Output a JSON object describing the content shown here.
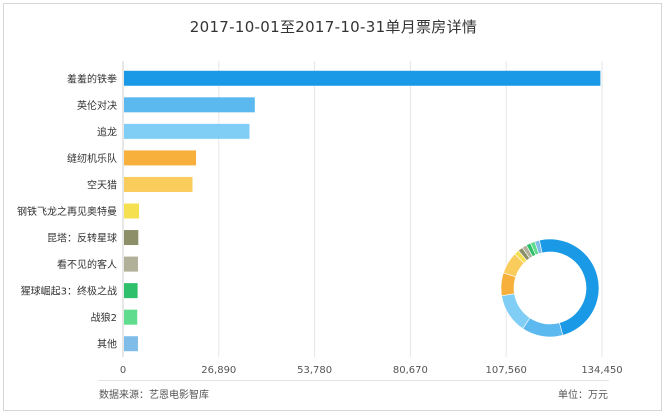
{
  "chart_data": {
    "type": "bar",
    "orientation": "horizontal",
    "title": "2017-10-01至2017-10-31单月票房详情",
    "categories": [
      "羞羞的铁拳",
      "英伦对决",
      "追龙",
      "缝纫机乐队",
      "空天猎",
      "钢铁飞龙之再见奥特曼",
      "昆塔：反转星球",
      "看不见的客人",
      "猩球崛起3：终极之战",
      "战狼2",
      "其他"
    ],
    "values": [
      134000,
      37000,
      35500,
      20500,
      19500,
      4500,
      4300,
      4200,
      4100,
      4000,
      4200
    ],
    "colors": [
      "#1a9ae6",
      "#5bb9f0",
      "#80cdf5",
      "#f7b03c",
      "#f9cc5c",
      "#f5e14f",
      "#8d8f68",
      "#b1b098",
      "#2ec06b",
      "#5fdc8d",
      "#7fbde8"
    ],
    "xlim": [
      0,
      134450
    ],
    "xticks": [
      "0",
      "26,890",
      "53,780",
      "80,670",
      "107,560",
      "134,450"
    ],
    "grid": "vertical",
    "inset": {
      "type": "donut",
      "values": [
        134000,
        37000,
        35500,
        20500,
        19500,
        4500,
        4300,
        4200,
        4100,
        4000,
        4200
      ]
    }
  },
  "footer": {
    "source": "数据来源：艺恩电影智库",
    "unit": "单位：万元"
  }
}
